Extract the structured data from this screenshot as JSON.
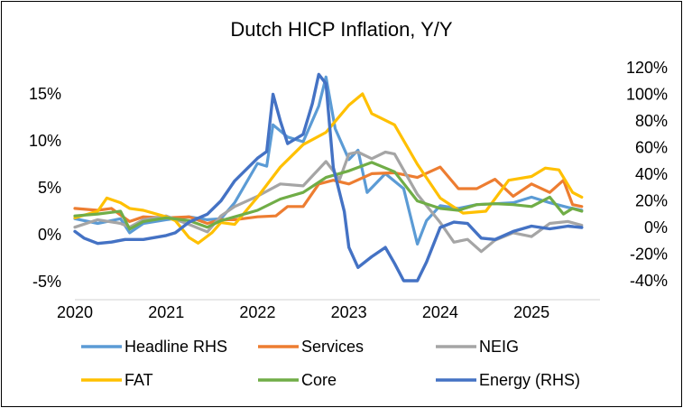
{
  "chart_data": {
    "type": "line",
    "title": "Dutch HICP Inflation, Y/Y",
    "x_ticks": [
      "2020",
      "2021",
      "2022",
      "2023",
      "2024",
      "2025"
    ],
    "y_left": {
      "ticks": [
        "15%",
        "10%",
        "5%",
        "0%",
        "-5%"
      ],
      "values": [
        15,
        10,
        5,
        0,
        -5
      ],
      "range": [
        -5.3,
        16.5
      ]
    },
    "y_right": {
      "ticks": [
        "120%",
        "100%",
        "80%",
        "60%",
        "40%",
        "20%",
        "0%",
        "-20%",
        "-40%"
      ],
      "values": [
        120,
        100,
        80,
        60,
        40,
        20,
        0,
        -20,
        -40
      ],
      "range": [
        -42,
        123
      ]
    },
    "legend_position": "bottom",
    "series": [
      {
        "name": "Headline RHS",
        "axis": "left",
        "color": "#5B9BD5",
        "points": [
          [
            2020.0,
            1.7
          ],
          [
            2020.25,
            1.2
          ],
          [
            2020.5,
            1.7
          ],
          [
            2020.6,
            0.2
          ],
          [
            2020.75,
            1.2
          ],
          [
            2021.0,
            1.6
          ],
          [
            2021.25,
            1.9
          ],
          [
            2021.45,
            1.6
          ],
          [
            2021.6,
            1.7
          ],
          [
            2021.75,
            3.4
          ],
          [
            2022.0,
            7.6
          ],
          [
            2022.1,
            7.3
          ],
          [
            2022.17,
            11.7
          ],
          [
            2022.33,
            10.4
          ],
          [
            2022.5,
            9.9
          ],
          [
            2022.67,
            13.7
          ],
          [
            2022.75,
            16.8
          ],
          [
            2022.85,
            11.3
          ],
          [
            2023.0,
            8.0
          ],
          [
            2023.1,
            9.0
          ],
          [
            2023.2,
            4.5
          ],
          [
            2023.4,
            6.5
          ],
          [
            2023.6,
            4.9
          ],
          [
            2023.75,
            -1.0
          ],
          [
            2023.85,
            1.5
          ],
          [
            2024.0,
            3.1
          ],
          [
            2024.2,
            2.8
          ],
          [
            2024.4,
            3.2
          ],
          [
            2024.6,
            3.3
          ],
          [
            2024.8,
            3.4
          ],
          [
            2025.0,
            4.0
          ],
          [
            2025.2,
            3.4
          ],
          [
            2025.4,
            2.9
          ],
          [
            2025.55,
            2.6
          ]
        ]
      },
      {
        "name": "Services",
        "axis": "left",
        "color": "#ED7D31",
        "points": [
          [
            2020.0,
            2.8
          ],
          [
            2020.25,
            2.6
          ],
          [
            2020.4,
            2.8
          ],
          [
            2020.6,
            1.4
          ],
          [
            2020.75,
            1.9
          ],
          [
            2021.0,
            1.8
          ],
          [
            2021.25,
            1.9
          ],
          [
            2021.45,
            1.2
          ],
          [
            2021.6,
            1.6
          ],
          [
            2021.75,
            1.6
          ],
          [
            2022.0,
            1.9
          ],
          [
            2022.2,
            2.0
          ],
          [
            2022.33,
            3.0
          ],
          [
            2022.5,
            3.0
          ],
          [
            2022.67,
            5.4
          ],
          [
            2022.83,
            5.8
          ],
          [
            2023.0,
            5.4
          ],
          [
            2023.25,
            6.5
          ],
          [
            2023.5,
            6.6
          ],
          [
            2023.75,
            6.1
          ],
          [
            2024.0,
            7.2
          ],
          [
            2024.2,
            4.9
          ],
          [
            2024.4,
            4.9
          ],
          [
            2024.6,
            5.9
          ],
          [
            2024.8,
            4.1
          ],
          [
            2025.0,
            5.4
          ],
          [
            2025.2,
            4.5
          ],
          [
            2025.35,
            5.8
          ],
          [
            2025.45,
            3.2
          ],
          [
            2025.55,
            3.0
          ]
        ]
      },
      {
        "name": "NEIG",
        "axis": "left",
        "color": "#A5A5A5",
        "points": [
          [
            2020.0,
            0.8
          ],
          [
            2020.25,
            1.6
          ],
          [
            2020.5,
            1.2
          ],
          [
            2020.6,
            0.8
          ],
          [
            2020.75,
            1.6
          ],
          [
            2021.0,
            2.0
          ],
          [
            2021.25,
            1.1
          ],
          [
            2021.45,
            0.3
          ],
          [
            2021.6,
            2.0
          ],
          [
            2021.75,
            3.0
          ],
          [
            2022.0,
            4.1
          ],
          [
            2022.25,
            5.4
          ],
          [
            2022.5,
            5.2
          ],
          [
            2022.75,
            7.8
          ],
          [
            2022.9,
            5.9
          ],
          [
            2023.0,
            8.6
          ],
          [
            2023.1,
            8.8
          ],
          [
            2023.25,
            8.1
          ],
          [
            2023.4,
            8.8
          ],
          [
            2023.5,
            8.6
          ],
          [
            2023.75,
            4.3
          ],
          [
            2024.0,
            1.3
          ],
          [
            2024.15,
            -0.8
          ],
          [
            2024.3,
            -0.5
          ],
          [
            2024.45,
            -1.8
          ],
          [
            2024.6,
            -0.6
          ],
          [
            2024.8,
            0.2
          ],
          [
            2025.0,
            -0.2
          ],
          [
            2025.2,
            1.2
          ],
          [
            2025.4,
            1.4
          ],
          [
            2025.55,
            1.0
          ]
        ]
      },
      {
        "name": "FAT",
        "axis": "left",
        "color": "#FFC000",
        "points": [
          [
            2020.0,
            1.8
          ],
          [
            2020.25,
            2.5
          ],
          [
            2020.35,
            3.9
          ],
          [
            2020.5,
            3.4
          ],
          [
            2020.6,
            2.8
          ],
          [
            2020.75,
            2.6
          ],
          [
            2021.0,
            1.9
          ],
          [
            2021.1,
            1.5
          ],
          [
            2021.25,
            -0.3
          ],
          [
            2021.35,
            -0.9
          ],
          [
            2021.5,
            0.2
          ],
          [
            2021.6,
            1.3
          ],
          [
            2021.75,
            1.1
          ],
          [
            2022.0,
            4.0
          ],
          [
            2022.25,
            7.2
          ],
          [
            2022.5,
            9.6
          ],
          [
            2022.75,
            10.9
          ],
          [
            2023.0,
            13.8
          ],
          [
            2023.15,
            15.0
          ],
          [
            2023.25,
            12.9
          ],
          [
            2023.5,
            11.7
          ],
          [
            2023.75,
            7.5
          ],
          [
            2024.0,
            3.9
          ],
          [
            2024.25,
            2.3
          ],
          [
            2024.5,
            2.5
          ],
          [
            2024.75,
            5.8
          ],
          [
            2025.0,
            6.2
          ],
          [
            2025.15,
            7.1
          ],
          [
            2025.3,
            6.9
          ],
          [
            2025.45,
            4.5
          ],
          [
            2025.55,
            4.0
          ]
        ]
      },
      {
        "name": "Core",
        "axis": "left",
        "color": "#70AD47",
        "points": [
          [
            2020.0,
            2.0
          ],
          [
            2020.25,
            2.2
          ],
          [
            2020.5,
            2.5
          ],
          [
            2020.6,
            0.6
          ],
          [
            2020.75,
            1.4
          ],
          [
            2021.0,
            1.8
          ],
          [
            2021.25,
            1.5
          ],
          [
            2021.45,
            0.8
          ],
          [
            2021.6,
            1.5
          ],
          [
            2021.75,
            1.9
          ],
          [
            2022.0,
            2.6
          ],
          [
            2022.25,
            3.8
          ],
          [
            2022.5,
            4.5
          ],
          [
            2022.75,
            6.1
          ],
          [
            2023.0,
            6.8
          ],
          [
            2023.25,
            7.7
          ],
          [
            2023.5,
            6.7
          ],
          [
            2023.75,
            3.6
          ],
          [
            2024.0,
            2.8
          ],
          [
            2024.2,
            2.6
          ],
          [
            2024.4,
            3.2
          ],
          [
            2024.6,
            3.3
          ],
          [
            2024.8,
            3.2
          ],
          [
            2025.0,
            3.0
          ],
          [
            2025.2,
            4.0
          ],
          [
            2025.35,
            2.2
          ],
          [
            2025.45,
            2.8
          ],
          [
            2025.55,
            2.5
          ]
        ]
      },
      {
        "name": "Energy (RHS)",
        "axis": "right",
        "color": "#4472C4",
        "points": [
          [
            2020.0,
            -3
          ],
          [
            2020.1,
            -8
          ],
          [
            2020.25,
            -12
          ],
          [
            2020.4,
            -11
          ],
          [
            2020.55,
            -9
          ],
          [
            2020.75,
            -9
          ],
          [
            2021.0,
            -6
          ],
          [
            2021.1,
            -4
          ],
          [
            2021.25,
            4
          ],
          [
            2021.45,
            10
          ],
          [
            2021.6,
            20
          ],
          [
            2021.75,
            35
          ],
          [
            2022.0,
            52
          ],
          [
            2022.1,
            57
          ],
          [
            2022.17,
            100
          ],
          [
            2022.25,
            80
          ],
          [
            2022.33,
            63
          ],
          [
            2022.5,
            70
          ],
          [
            2022.6,
            93
          ],
          [
            2022.67,
            115
          ],
          [
            2022.75,
            108
          ],
          [
            2022.83,
            45
          ],
          [
            2022.95,
            12
          ],
          [
            2023.0,
            -15
          ],
          [
            2023.1,
            -30
          ],
          [
            2023.25,
            -22
          ],
          [
            2023.4,
            -15
          ],
          [
            2023.5,
            -27
          ],
          [
            2023.6,
            -40
          ],
          [
            2023.75,
            -40
          ],
          [
            2023.85,
            -26
          ],
          [
            2024.0,
            0
          ],
          [
            2024.15,
            4
          ],
          [
            2024.3,
            3
          ],
          [
            2024.45,
            -8
          ],
          [
            2024.6,
            -9
          ],
          [
            2024.8,
            -3
          ],
          [
            2025.0,
            1
          ],
          [
            2025.2,
            -1
          ],
          [
            2025.4,
            1
          ],
          [
            2025.55,
            0
          ]
        ]
      }
    ]
  }
}
